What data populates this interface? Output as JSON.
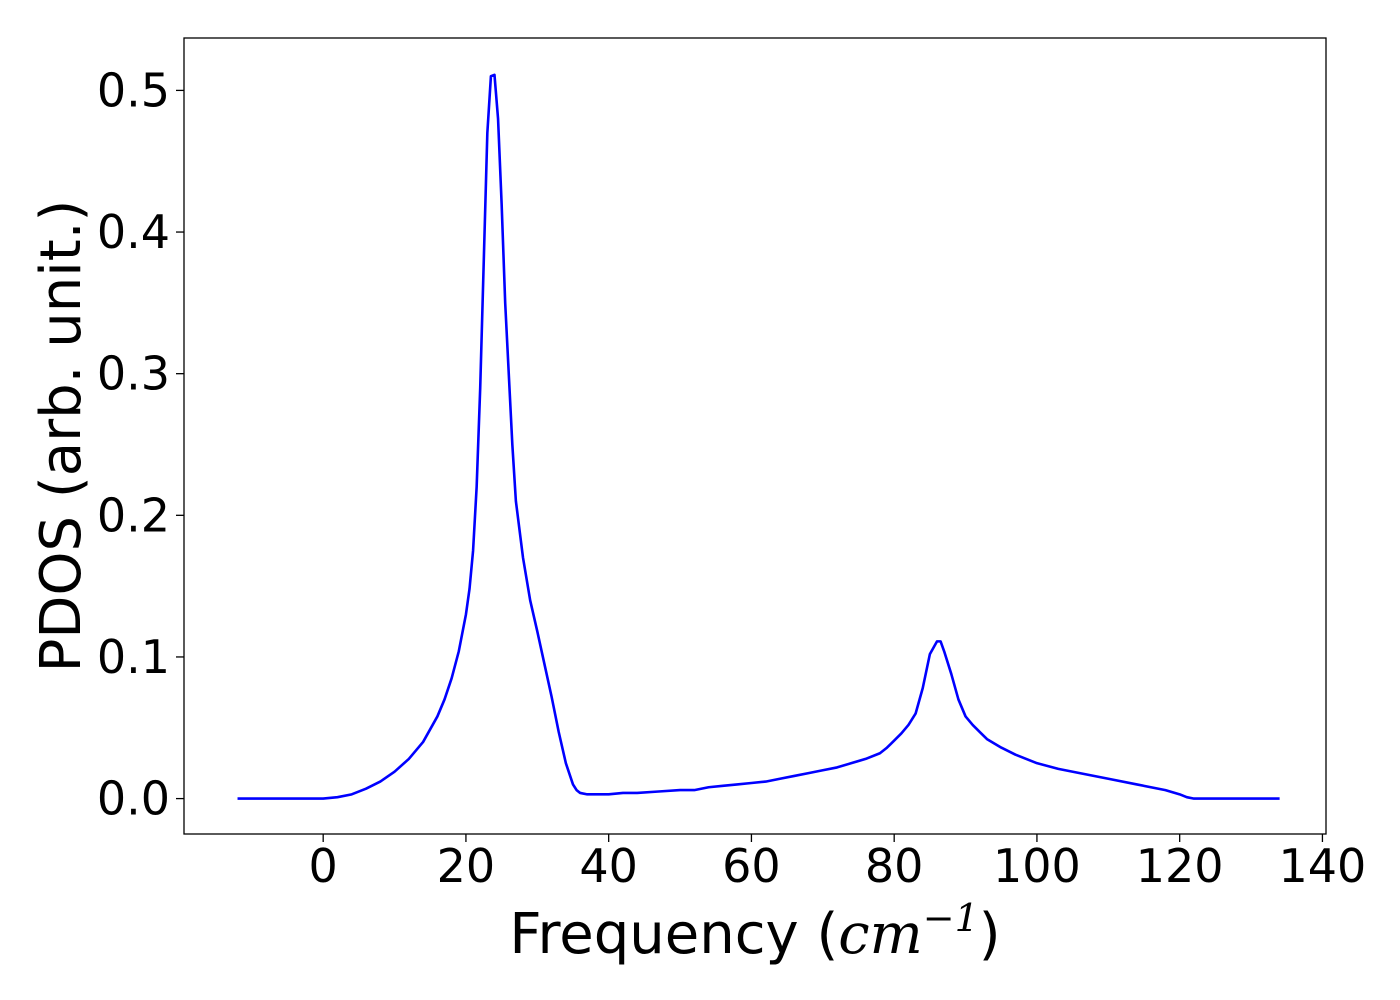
{
  "chart_data": {
    "type": "line",
    "title": "",
    "xlabel": "Frequency",
    "xlabel_unit_base": "cm",
    "xlabel_unit_exp": "−1",
    "ylabel": "PDOS (arb. unit.)",
    "xlim": [
      -19.5,
      140.5
    ],
    "ylim": [
      -0.025,
      0.537
    ],
    "x_ticks": [
      0,
      20,
      40,
      60,
      80,
      100,
      120,
      140
    ],
    "y_ticks": [
      0.0,
      0.1,
      0.2,
      0.3,
      0.4,
      0.5
    ],
    "x_tick_labels": [
      "0",
      "20",
      "40",
      "60",
      "80",
      "100",
      "120",
      "140"
    ],
    "y_tick_labels": [
      "0.0",
      "0.1",
      "0.2",
      "0.3",
      "0.4",
      "0.5"
    ],
    "grid": false,
    "legend": null,
    "line_color": "#0000ff",
    "series": [
      {
        "x": [
          -12,
          -8,
          -4,
          0,
          2,
          4,
          6,
          8,
          10,
          12,
          14,
          16,
          17,
          18,
          19,
          20,
          20.5,
          21,
          21.5,
          22,
          22.5,
          23,
          23.5,
          24,
          24.5,
          25,
          25.5,
          26,
          26.5,
          27,
          28,
          29,
          30,
          31,
          32,
          33,
          34,
          35,
          35.5,
          36,
          37,
          38,
          40,
          42,
          44,
          47,
          50,
          52,
          54,
          56,
          58,
          60,
          62,
          64,
          66,
          68,
          70,
          72,
          74,
          76,
          78,
          79,
          80,
          81,
          82,
          83,
          84,
          85,
          86,
          86.5,
          87,
          88,
          89,
          90,
          91,
          92,
          93,
          95,
          97,
          100,
          103,
          106,
          110,
          114,
          118,
          120,
          121,
          122,
          124,
          128,
          134
        ],
        "y": [
          0.0,
          0.0,
          0.0,
          0.0,
          0.001,
          0.003,
          0.007,
          0.012,
          0.019,
          0.028,
          0.04,
          0.058,
          0.07,
          0.085,
          0.104,
          0.13,
          0.148,
          0.175,
          0.22,
          0.29,
          0.38,
          0.47,
          0.51,
          0.511,
          0.48,
          0.42,
          0.35,
          0.3,
          0.25,
          0.21,
          0.17,
          0.14,
          0.118,
          0.095,
          0.072,
          0.047,
          0.025,
          0.01,
          0.006,
          0.004,
          0.003,
          0.003,
          0.003,
          0.004,
          0.004,
          0.005,
          0.006,
          0.006,
          0.008,
          0.009,
          0.01,
          0.011,
          0.012,
          0.014,
          0.016,
          0.018,
          0.02,
          0.022,
          0.025,
          0.028,
          0.032,
          0.036,
          0.041,
          0.046,
          0.052,
          0.06,
          0.078,
          0.102,
          0.111,
          0.111,
          0.104,
          0.088,
          0.07,
          0.058,
          0.052,
          0.047,
          0.042,
          0.036,
          0.031,
          0.025,
          0.021,
          0.018,
          0.014,
          0.01,
          0.006,
          0.003,
          0.001,
          0.0,
          0.0,
          0.0,
          0.0
        ]
      }
    ]
  }
}
